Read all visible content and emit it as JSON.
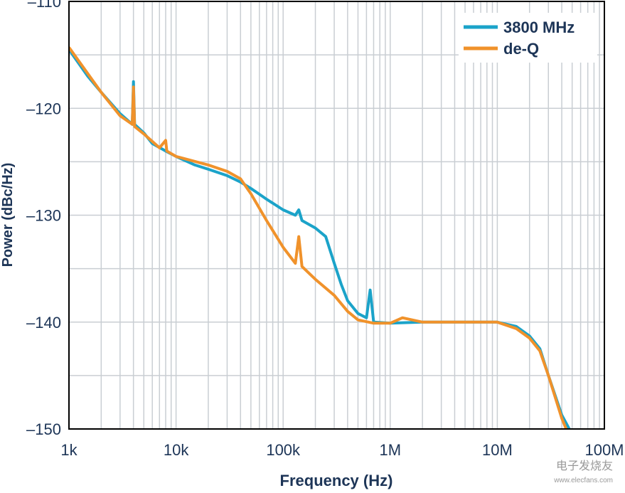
{
  "chart_data": {
    "type": "line",
    "x_label": "Frequency (Hz)",
    "y_label": "Power (dBc/Hz)",
    "xscale": "log",
    "grid": true,
    "legend": "upper right",
    "xlim": [
      1000,
      100000000
    ],
    "xticks": [
      {
        "value": 1000,
        "label": "1k"
      },
      {
        "value": 10000,
        "label": "10k"
      },
      {
        "value": 100000,
        "label": "100k"
      },
      {
        "value": 1000000,
        "label": "1M"
      },
      {
        "value": 10000000,
        "label": "10M"
      },
      {
        "value": 100000000,
        "label": "100M"
      }
    ],
    "ylim": [
      -150,
      -110
    ],
    "yticks": [
      {
        "value": -150,
        "label": "–150"
      },
      {
        "value": -140,
        "label": "–140"
      },
      {
        "value": -130,
        "label": "–130"
      },
      {
        "value": -120,
        "label": "–120"
      },
      {
        "value": -110,
        "label": "–110"
      }
    ],
    "yminorticks": [
      -145,
      -135,
      -125,
      -115
    ],
    "series": [
      {
        "name": "3800 MHz",
        "color": "#1ba3c9",
        "x": [
          1000,
          1500,
          2000,
          3000,
          3900,
          4000,
          4100,
          5000,
          6000,
          8000,
          10000,
          15000,
          20000,
          30000,
          40000,
          50000,
          70000,
          100000,
          130000,
          140000,
          150000,
          200000,
          250000,
          300000,
          350000,
          400000,
          500000,
          600000,
          650000,
          700000,
          1000000,
          2000000,
          5000000,
          10000000,
          15000000,
          20000000,
          25000000,
          30000000,
          40000000,
          47000000
        ],
        "values": [
          -114.5,
          -117,
          -118.5,
          -120.5,
          -121.5,
          -117.5,
          -121.5,
          -122.3,
          -123.3,
          -124,
          -124.5,
          -125.3,
          -125.7,
          -126.3,
          -126.9,
          -127.5,
          -128.5,
          -129.5,
          -130,
          -129.5,
          -130.5,
          -131.2,
          -132,
          -134.5,
          -136.5,
          -138,
          -139.2,
          -139.6,
          -137,
          -140,
          -140.1,
          -140,
          -140,
          -140,
          -140.4,
          -141.3,
          -142.5,
          -145,
          -148.7,
          -150
        ]
      },
      {
        "name": "de-Q",
        "color": "#f0922b",
        "x": [
          1000,
          2000,
          3000,
          3900,
          4000,
          4100,
          5000,
          7000,
          8000,
          8200,
          10000,
          20000,
          30000,
          40000,
          50000,
          70000,
          100000,
          130000,
          140000,
          150000,
          200000,
          300000,
          400000,
          500000,
          700000,
          1000000,
          1300000,
          2000000,
          5000000,
          10000000,
          15000000,
          20000000,
          25000000,
          30000000,
          40000000,
          44000000
        ],
        "values": [
          -114.3,
          -118.5,
          -120.7,
          -121.5,
          -118,
          -121.7,
          -122.4,
          -123.7,
          -123,
          -124,
          -124.5,
          -125.3,
          -125.9,
          -126.6,
          -128,
          -130.5,
          -133,
          -134.5,
          -132,
          -134.8,
          -136,
          -137.5,
          -139,
          -139.8,
          -140.1,
          -140.1,
          -139.6,
          -140,
          -140,
          -140,
          -140.6,
          -141.5,
          -142.7,
          -145,
          -149,
          -150
        ]
      }
    ]
  },
  "watermark": {
    "name": "电子发烧友",
    "url": "www.elecfans.com"
  }
}
